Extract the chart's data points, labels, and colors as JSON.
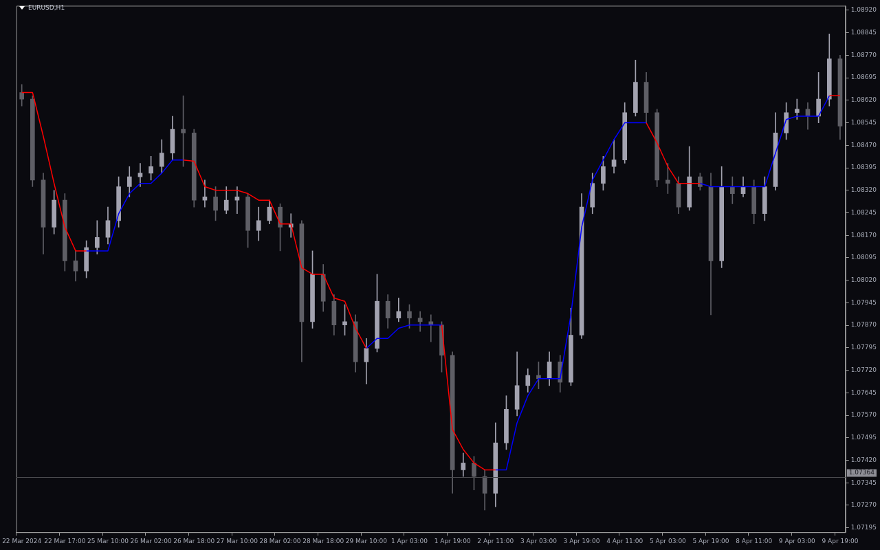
{
  "chart_data": {
    "type": "candlestick",
    "title": "EURUSD,H1",
    "categories": [
      "22 Mar 2024",
      null,
      null,
      null,
      "22 Mar 17:00",
      null,
      null,
      null,
      "25 Mar 10:00",
      null,
      null,
      null,
      "26 Mar 02:00",
      null,
      null,
      null,
      "26 Mar 18:00",
      null,
      null,
      null,
      "27 Mar 10:00",
      null,
      null,
      null,
      "28 Mar 02:00",
      null,
      null,
      null,
      "28 Mar 18:00",
      null,
      null,
      null,
      "29 Mar 10:00",
      null,
      null,
      null,
      "1 Apr 03:00",
      null,
      null,
      null,
      "1 Apr 19:00",
      null,
      null,
      null,
      "2 Apr 11:00",
      null,
      null,
      null,
      "3 Apr 03:00",
      null,
      null,
      null,
      "3 Apr 19:00",
      null,
      null,
      null,
      "4 Apr 11:00",
      null,
      null,
      null,
      "5 Apr 03:00",
      null,
      null,
      null,
      "5 Apr 19:00",
      null,
      null,
      null,
      "8 Apr 11:00",
      null,
      null,
      null,
      "9 Apr 03:00",
      null,
      null,
      null,
      "9 Apr 19:00"
    ],
    "ohlc": [
      [
        1.08646,
        1.08673,
        1.08601,
        1.08624
      ],
      [
        1.08624,
        1.08635,
        1.08332,
        1.08354
      ],
      [
        1.08354,
        1.08377,
        1.08107,
        1.08197
      ],
      [
        1.08197,
        1.0832,
        1.08174,
        1.08287
      ],
      [
        1.08287,
        1.08309,
        1.08051,
        1.08085
      ],
      [
        1.08085,
        1.08118,
        1.08017,
        1.08051
      ],
      [
        1.08051,
        1.08152,
        1.08028,
        1.08129
      ],
      [
        1.08129,
        1.08219,
        1.08107,
        1.08163
      ],
      [
        1.08163,
        1.08264,
        1.08141,
        1.08219
      ],
      [
        1.08219,
        1.08365,
        1.08197,
        1.08332
      ],
      [
        1.08332,
        1.08399,
        1.08298,
        1.08365
      ],
      [
        1.08365,
        1.0841,
        1.08332,
        1.08377
      ],
      [
        1.08377,
        1.08433,
        1.08354,
        1.08399
      ],
      [
        1.08399,
        1.08489,
        1.08377,
        1.08444
      ],
      [
        1.08444,
        1.08567,
        1.08421,
        1.08523
      ],
      [
        1.08523,
        1.08635,
        1.08399,
        1.08511
      ],
      [
        1.08511,
        1.08523,
        1.08264,
        1.08287
      ],
      [
        1.08287,
        1.08354,
        1.08264,
        1.08298
      ],
      [
        1.08298,
        1.08332,
        1.08219,
        1.08253
      ],
      [
        1.08253,
        1.08332,
        1.08242,
        1.08287
      ],
      [
        1.08287,
        1.08332,
        1.08242,
        1.08298
      ],
      [
        1.08298,
        1.08309,
        1.08129,
        1.08186
      ],
      [
        1.08186,
        1.08264,
        1.08152,
        1.08219
      ],
      [
        1.08219,
        1.08287,
        1.08208,
        1.08264
      ],
      [
        1.08264,
        1.08275,
        1.08118,
        1.08197
      ],
      [
        1.08197,
        1.08242,
        1.08163,
        1.08208
      ],
      [
        1.08208,
        1.08219,
        1.07748,
        1.07882
      ],
      [
        1.07882,
        1.08118,
        1.0786,
        1.0804
      ],
      [
        1.0804,
        1.08073,
        1.07916,
        1.0795
      ],
      [
        1.0795,
        1.07972,
        1.07837,
        1.07871
      ],
      [
        1.07871,
        1.07939,
        1.07837,
        1.07882
      ],
      [
        1.07882,
        1.07905,
        1.07714,
        1.07748
      ],
      [
        1.07748,
        1.07826,
        1.07674,
        1.07793
      ],
      [
        1.07793,
        1.0804,
        1.07781,
        1.0795
      ],
      [
        1.0795,
        1.07972,
        1.0786,
        1.07894
      ],
      [
        1.07894,
        1.07961,
        1.07882,
        1.07916
      ],
      [
        1.07916,
        1.07939,
        1.0786,
        1.07894
      ],
      [
        1.07894,
        1.07916,
        1.07849,
        1.07882
      ],
      [
        1.07882,
        1.07905,
        1.07815,
        1.07871
      ],
      [
        1.07871,
        1.07882,
        1.07714,
        1.0777
      ],
      [
        1.0777,
        1.07781,
        1.0731,
        1.07388
      ],
      [
        1.07388,
        1.07444,
        1.07366,
        1.07411
      ],
      [
        1.07411,
        1.07433,
        1.07321,
        1.07366
      ],
      [
        1.07366,
        1.07388,
        1.07254,
        1.0731
      ],
      [
        1.0731,
        1.07545,
        1.07265,
        1.07478
      ],
      [
        1.07478,
        1.07635,
        1.07456,
        1.0759
      ],
      [
        1.0759,
        1.07781,
        1.07568,
        1.07669
      ],
      [
        1.07669,
        1.07725,
        1.07647,
        1.07703
      ],
      [
        1.07703,
        1.07748,
        1.07658,
        1.07692
      ],
      [
        1.07692,
        1.07781,
        1.07669,
        1.07748
      ],
      [
        1.07748,
        1.0777,
        1.07647,
        1.0768
      ],
      [
        1.0768,
        1.07927,
        1.07669,
        1.07837
      ],
      [
        1.07837,
        1.08309,
        1.07826,
        1.08264
      ],
      [
        1.08264,
        1.08377,
        1.08242,
        1.08343
      ],
      [
        1.08343,
        1.08433,
        1.0832,
        1.08399
      ],
      [
        1.08399,
        1.08489,
        1.08377,
        1.08421
      ],
      [
        1.08421,
        1.08612,
        1.0841,
        1.08579
      ],
      [
        1.08579,
        1.08754,
        1.08567,
        1.0868
      ],
      [
        1.0868,
        1.08713,
        1.08545,
        1.08579
      ],
      [
        1.08579,
        1.0859,
        1.08332,
        1.08354
      ],
      [
        1.08354,
        1.0841,
        1.08309,
        1.08343
      ],
      [
        1.08343,
        1.08365,
        1.08242,
        1.08264
      ],
      [
        1.08264,
        1.08466,
        1.08253,
        1.08365
      ],
      [
        1.08365,
        1.08377,
        1.0832,
        1.08332
      ],
      [
        1.08332,
        1.08377,
        1.07905,
        1.08085
      ],
      [
        1.08085,
        1.08399,
        1.08062,
        1.08332
      ],
      [
        1.08332,
        1.08365,
        1.08275,
        1.08309
      ],
      [
        1.08309,
        1.08365,
        1.08298,
        1.08332
      ],
      [
        1.08332,
        1.08354,
        1.08208,
        1.08242
      ],
      [
        1.08242,
        1.08365,
        1.08219,
        1.08332
      ],
      [
        1.08332,
        1.08579,
        1.0832,
        1.08511
      ],
      [
        1.08511,
        1.08612,
        1.08489,
        1.08579
      ],
      [
        1.08579,
        1.08624,
        1.08556,
        1.0859
      ],
      [
        1.0859,
        1.08612,
        1.08523,
        1.08567
      ],
      [
        1.08567,
        1.08713,
        1.08545,
        1.08624
      ],
      [
        1.08624,
        1.08841,
        1.08601,
        1.08758
      ],
      [
        1.08758,
        1.0877,
        1.08489,
        1.08534
      ]
    ],
    "colors": [
      "#5f5f66",
      "#5f5f66",
      "#5f5f66",
      "#a3a3b0",
      "#5f5f66",
      "#5f5f66",
      "#a3a3b0",
      "#a3a3b0",
      "#a3a3b0",
      "#a3a3b0",
      "#a3a3b0",
      "#a3a3b0",
      "#a3a3b0",
      "#a3a3b0",
      "#a3a3b0",
      "#5f5f66",
      "#5f5f66",
      "#a3a3b0",
      "#5f5f66",
      "#a3a3b0",
      "#a3a3b0",
      "#5f5f66",
      "#a3a3b0",
      "#a3a3b0",
      "#5f5f66",
      "#a3a3b0",
      "#5f5f66",
      "#a3a3b0",
      "#5f5f66",
      "#5f5f66",
      "#a3a3b0",
      "#5f5f66",
      "#a3a3b0",
      "#a3a3b0",
      "#5f5f66",
      "#a3a3b0",
      "#5f5f66",
      "#5f5f66",
      "#5f5f66",
      "#5f5f66",
      "#5f5f66",
      "#a3a3b0",
      "#5f5f66",
      "#5f5f66",
      "#a3a3b0",
      "#a3a3b0",
      "#a3a3b0",
      "#a3a3b0",
      "#5f5f66",
      "#a3a3b0",
      "#5f5f66",
      "#a3a3b0",
      "#a3a3b0",
      "#a3a3b0",
      "#a3a3b0",
      "#a3a3b0",
      "#a3a3b0",
      "#a3a3b0",
      "#5f5f66",
      "#5f5f66",
      "#5f5f66",
      "#5f5f66",
      "#a3a3b0",
      "#5f5f66",
      "#5f5f66",
      "#a3a3b0",
      "#5f5f66",
      "#a3a3b0",
      "#5f5f66",
      "#a3a3b0",
      "#a3a3b0",
      "#a3a3b0",
      "#a3a3b0",
      "#5f5f66",
      "#a3a3b0",
      "#a3a3b0",
      "#5f5f66"
    ],
    "series": [
      {
        "type": "line",
        "color": "#ff0000",
        "values": [
          1.08646,
          1.08646,
          1.085,
          1.08343,
          1.08197,
          1.08118,
          1.08118,
          null,
          null,
          null,
          null,
          null,
          null,
          null,
          null,
          1.08421,
          1.08417,
          1.08332,
          1.0832,
          1.0832,
          1.0832,
          1.08309,
          1.08287,
          1.08287,
          1.08208,
          1.08208,
          1.08062,
          1.0804,
          1.0804,
          1.07961,
          1.0795,
          1.0786,
          1.07793,
          null,
          null,
          null,
          null,
          null,
          null,
          1.07871,
          1.07523,
          1.07456,
          1.07411,
          1.07388,
          1.07388,
          null,
          null,
          null,
          null,
          null,
          null,
          null,
          null,
          null,
          null,
          null,
          null,
          null,
          1.08545,
          1.08478,
          1.08399,
          1.08343,
          1.08343,
          1.08343,
          null,
          null,
          null,
          null,
          null,
          null,
          null,
          null,
          null,
          null,
          null,
          1.08635,
          1.08635
        ]
      },
      {
        "type": "line",
        "color": "#0000ff",
        "values": [
          null,
          null,
          null,
          null,
          null,
          null,
          1.08118,
          1.08118,
          1.08118,
          1.08242,
          1.08309,
          1.08343,
          1.08343,
          1.08377,
          1.08421,
          1.08421,
          null,
          null,
          null,
          null,
          null,
          null,
          null,
          null,
          null,
          null,
          null,
          null,
          null,
          null,
          null,
          null,
          1.07793,
          1.07826,
          1.07826,
          1.0786,
          1.07871,
          1.07871,
          1.07871,
          1.07871,
          null,
          null,
          null,
          null,
          1.07388,
          1.07388,
          1.07545,
          1.07635,
          1.07692,
          1.07692,
          1.07692,
          1.07905,
          1.08197,
          1.08354,
          1.08421,
          1.08489,
          1.08545,
          1.08545,
          1.08545,
          null,
          null,
          null,
          null,
          1.08343,
          1.08332,
          1.08332,
          1.08332,
          1.08332,
          1.08332,
          1.08332,
          1.08444,
          1.08556,
          1.08567,
          1.08567,
          1.08567,
          1.08635,
          null
        ]
      }
    ],
    "ylim": [
      1.0718,
      1.08935
    ],
    "yticks": [
      {
        "value": 1.07195,
        "label": "1.07195"
      },
      {
        "value": 1.0727,
        "label": "1.07270"
      },
      {
        "value": 1.07345,
        "label": "1.07345"
      },
      {
        "value": 1.0742,
        "label": "1.07420"
      },
      {
        "value": 1.07495,
        "label": "1.07495"
      },
      {
        "value": 1.0757,
        "label": "1.07570"
      },
      {
        "value": 1.07645,
        "label": "1.07645"
      },
      {
        "value": 1.0772,
        "label": "1.07720"
      },
      {
        "value": 1.07795,
        "label": "1.07795"
      },
      {
        "value": 1.0787,
        "label": "1.07870"
      },
      {
        "value": 1.07945,
        "label": "1.07945"
      },
      {
        "value": 1.0802,
        "label": "1.08020"
      },
      {
        "value": 1.08095,
        "label": "1.08095"
      },
      {
        "value": 1.0817,
        "label": "1.08170"
      },
      {
        "value": 1.08245,
        "label": "1.08245"
      },
      {
        "value": 1.0832,
        "label": "1.08320"
      },
      {
        "value": 1.08395,
        "label": "1.08395"
      },
      {
        "value": 1.0847,
        "label": "1.08470"
      },
      {
        "value": 1.08545,
        "label": "1.08545"
      },
      {
        "value": 1.0862,
        "label": "1.08620"
      },
      {
        "value": 1.08695,
        "label": "1.08695"
      },
      {
        "value": 1.0877,
        "label": "1.08770"
      },
      {
        "value": 1.08845,
        "label": "1.08845"
      },
      {
        "value": 1.0892,
        "label": "1.08920"
      }
    ],
    "ref_lines": [
      {
        "axis": "y",
        "value": 1.07364,
        "label": "1.07364",
        "color": "#4a4a4e"
      }
    ],
    "grid": false,
    "legend": false
  }
}
